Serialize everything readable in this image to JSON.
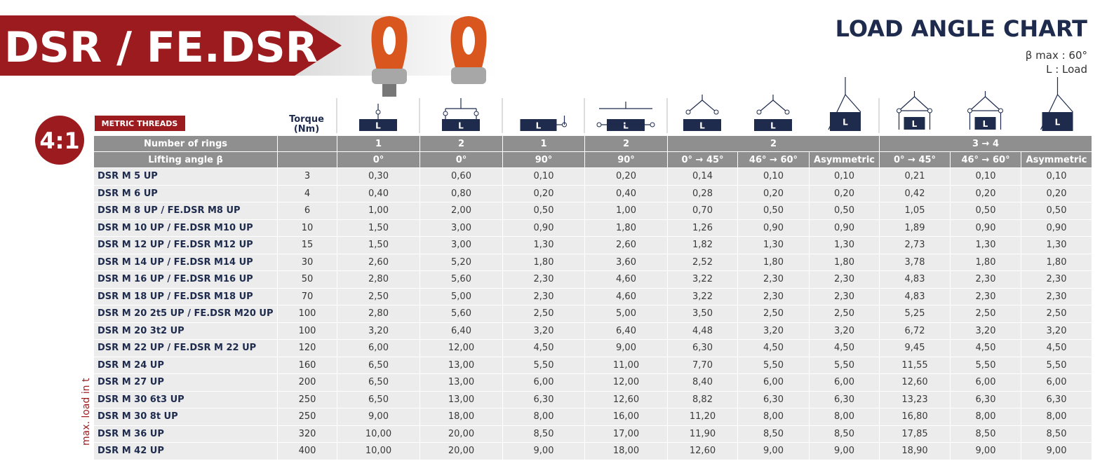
{
  "header": {
    "title": "DSR / FE.DSR",
    "chart_title": "LOAD ANGLE CHART",
    "beta_max": "β max : 60°",
    "load_note": "L : Load",
    "ratio": "4:1",
    "badge": "METRIC THREADS",
    "torque_label": "Torque",
    "torque_unit": "(Nm)",
    "side_label": "max. load in t"
  },
  "icons": [
    "L",
    "L",
    "L",
    "L",
    "L",
    "L",
    "L",
    "L",
    "L",
    "L"
  ],
  "table": {
    "rings_label": "Number of rings",
    "rings": [
      "1",
      "2",
      "1",
      "2",
      "2",
      "3 → 4"
    ],
    "angle_label": "Lifting angle β",
    "angles": [
      "0°",
      "0°",
      "90°",
      "90°",
      "0° → 45°",
      "46° → 60°",
      "Asymmetric",
      "0° → 45°",
      "46° → 60°",
      "Asymmetric"
    ],
    "rows": [
      {
        "name": "DSR M 5 UP",
        "torque": 3,
        "values": [
          "0,30",
          "0,60",
          "0,10",
          "0,20",
          "0,14",
          "0,10",
          "0,10",
          "0,21",
          "0,10",
          "0,10"
        ]
      },
      {
        "name": "DSR M 6 UP",
        "torque": 4,
        "values": [
          "0,40",
          "0,80",
          "0,20",
          "0,40",
          "0,28",
          "0,20",
          "0,20",
          "0,42",
          "0,20",
          "0,20"
        ]
      },
      {
        "name": "DSR M 8 UP / FE.DSR M8 UP",
        "torque": 6,
        "values": [
          "1,00",
          "2,00",
          "0,50",
          "1,00",
          "0,70",
          "0,50",
          "0,50",
          "1,05",
          "0,50",
          "0,50"
        ]
      },
      {
        "name": "DSR M 10 UP / FE.DSR M10 UP",
        "torque": 10,
        "values": [
          "1,50",
          "3,00",
          "0,90",
          "1,80",
          "1,26",
          "0,90",
          "0,90",
          "1,89",
          "0,90",
          "0,90"
        ]
      },
      {
        "name": "DSR M 12 UP / FE.DSR M12 UP",
        "torque": 15,
        "values": [
          "1,50",
          "3,00",
          "1,30",
          "2,60",
          "1,82",
          "1,30",
          "1,30",
          "2,73",
          "1,30",
          "1,30"
        ]
      },
      {
        "name": "DSR M 14 UP / FE.DSR M14 UP",
        "torque": 30,
        "values": [
          "2,60",
          "5,20",
          "1,80",
          "3,60",
          "2,52",
          "1,80",
          "1,80",
          "3,78",
          "1,80",
          "1,80"
        ]
      },
      {
        "name": "DSR M 16 UP / FE.DSR M16 UP",
        "torque": 50,
        "values": [
          "2,80",
          "5,60",
          "2,30",
          "4,60",
          "3,22",
          "2,30",
          "2,30",
          "4,83",
          "2,30",
          "2,30"
        ]
      },
      {
        "name": "DSR M 18 UP / FE.DSR M18 UP",
        "torque": 70,
        "values": [
          "2,50",
          "5,00",
          "2,30",
          "4,60",
          "3,22",
          "2,30",
          "2,30",
          "4,83",
          "2,30",
          "2,30"
        ]
      },
      {
        "name": "DSR M 20 2t5 UP / FE.DSR M20 UP",
        "torque": 100,
        "values": [
          "2,80",
          "5,60",
          "2,50",
          "5,00",
          "3,50",
          "2,50",
          "2,50",
          "5,25",
          "2,50",
          "2,50"
        ]
      },
      {
        "name": "DSR M 20 3t2 UP",
        "torque": 100,
        "values": [
          "3,20",
          "6,40",
          "3,20",
          "6,40",
          "4,48",
          "3,20",
          "3,20",
          "6,72",
          "3,20",
          "3,20"
        ]
      },
      {
        "name": "DSR M 22 UP / FE.DSR M 22 UP",
        "torque": 120,
        "values": [
          "6,00",
          "12,00",
          "4,50",
          "9,00",
          "6,30",
          "4,50",
          "4,50",
          "9,45",
          "4,50",
          "4,50"
        ]
      },
      {
        "name": "DSR M 24 UP",
        "torque": 160,
        "values": [
          "6,50",
          "13,00",
          "5,50",
          "11,00",
          "7,70",
          "5,50",
          "5,50",
          "11,55",
          "5,50",
          "5,50"
        ]
      },
      {
        "name": "DSR M 27 UP",
        "torque": 200,
        "values": [
          "6,50",
          "13,00",
          "6,00",
          "12,00",
          "8,40",
          "6,00",
          "6,00",
          "12,60",
          "6,00",
          "6,00"
        ]
      },
      {
        "name": "DSR M 30 6t3 UP",
        "torque": 250,
        "values": [
          "6,50",
          "13,00",
          "6,30",
          "12,60",
          "8,82",
          "6,30",
          "6,30",
          "13,23",
          "6,30",
          "6,30"
        ]
      },
      {
        "name": "DSR M 30 8t UP",
        "torque": 250,
        "values": [
          "9,00",
          "18,00",
          "8,00",
          "16,00",
          "11,20",
          "8,00",
          "8,00",
          "16,80",
          "8,00",
          "8,00"
        ]
      },
      {
        "name": "DSR M 36 UP",
        "torque": 320,
        "values": [
          "10,00",
          "20,00",
          "8,50",
          "17,00",
          "11,90",
          "8,50",
          "8,50",
          "17,85",
          "8,50",
          "8,50"
        ]
      },
      {
        "name": "DSR M 42 UP",
        "torque": 400,
        "values": [
          "10,00",
          "20,00",
          "9,00",
          "18,00",
          "12,60",
          "9,00",
          "9,00",
          "18,90",
          "9,00",
          "9,00"
        ]
      }
    ]
  }
}
